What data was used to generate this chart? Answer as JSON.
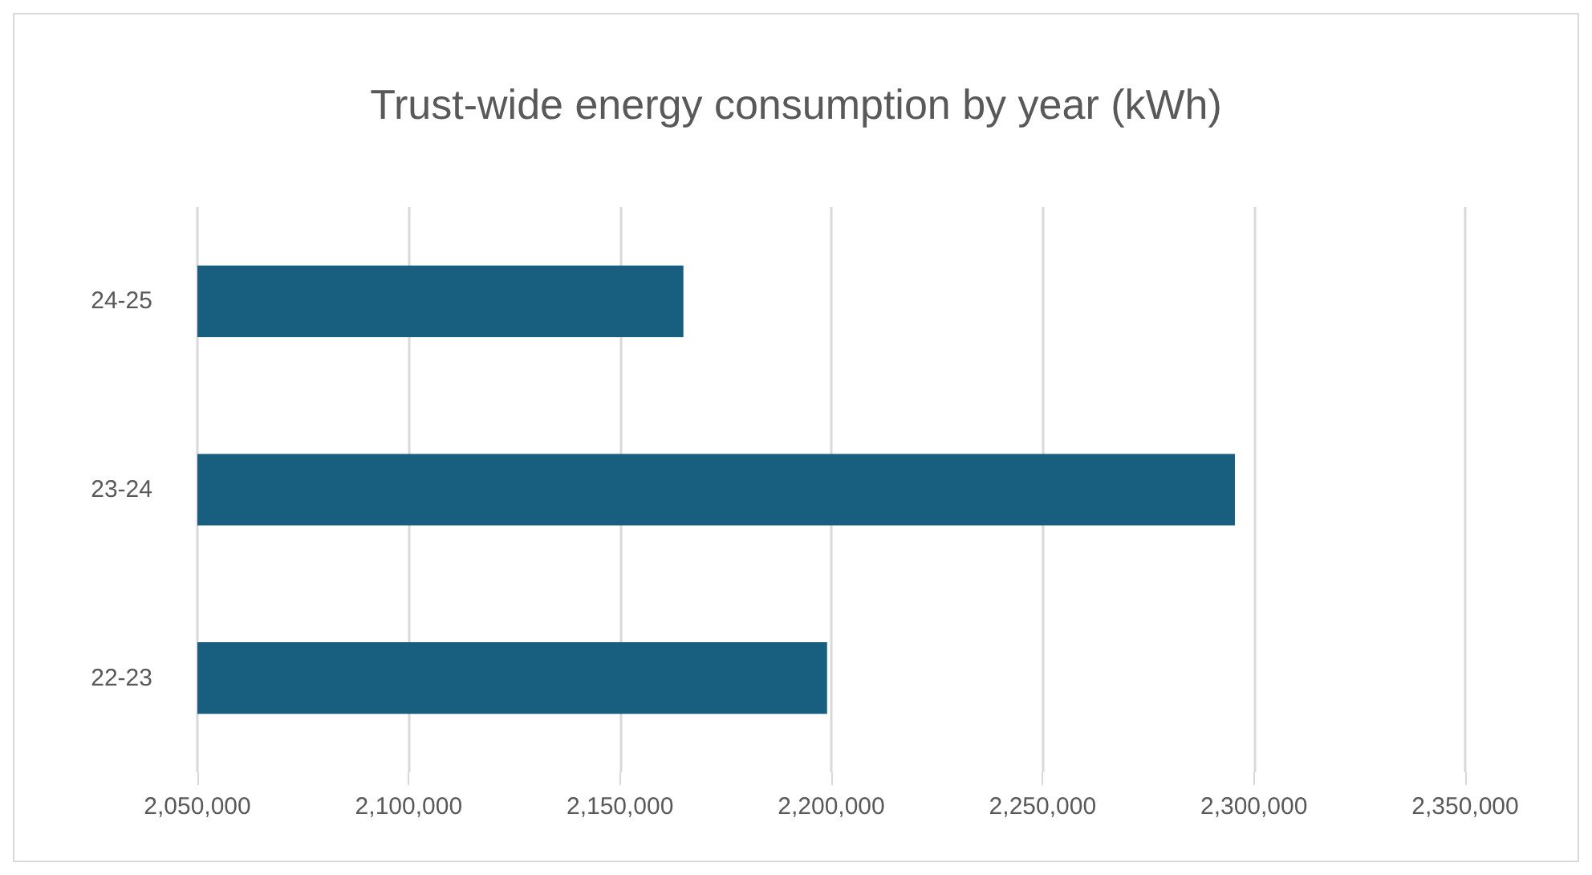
{
  "chart_data": {
    "type": "bar",
    "orientation": "horizontal",
    "title": "Trust-wide energy consumption by year (kWh)",
    "categories": [
      "24-25",
      "23-24",
      "22-23"
    ],
    "values": [
      2165000,
      2295500,
      2199000
    ],
    "color": "#175e7f",
    "xlim": [
      2050000,
      2350000
    ],
    "xticks": [
      {
        "value": 2050000,
        "label": "2,050,000"
      },
      {
        "value": 2100000,
        "label": "2,100,000"
      },
      {
        "value": 2150000,
        "label": "2,150,000"
      },
      {
        "value": 2200000,
        "label": "2,200,000"
      },
      {
        "value": 2250000,
        "label": "2,250,000"
      },
      {
        "value": 2300000,
        "label": "2,300,000"
      },
      {
        "value": 2350000,
        "label": "2,350,000"
      }
    ],
    "grid": "x"
  }
}
